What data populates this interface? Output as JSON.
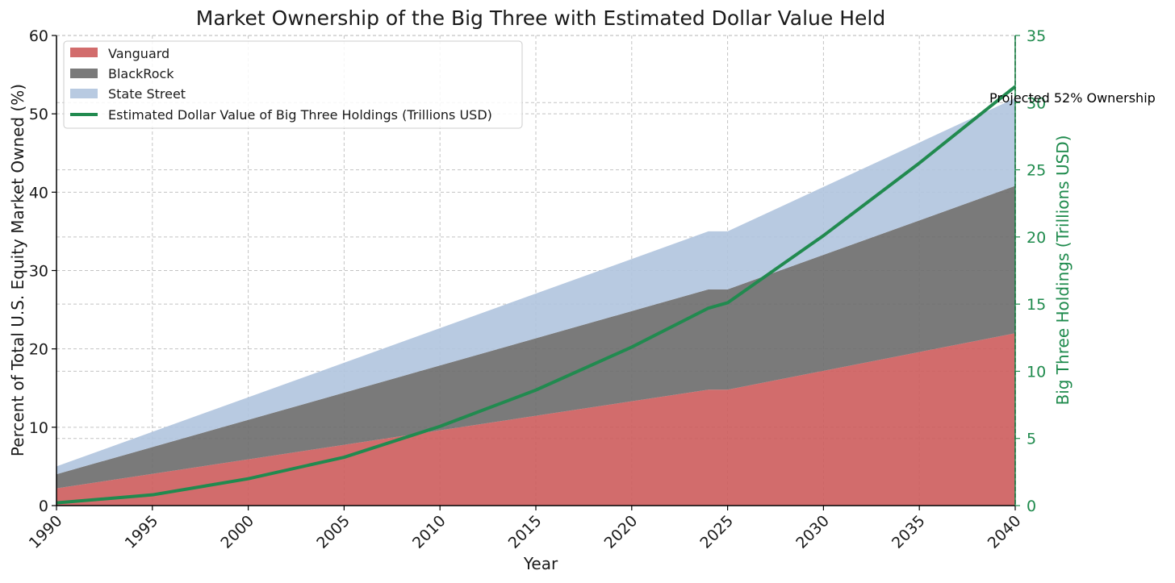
{
  "chart_data": {
    "type": "area",
    "title": "Market Ownership of the Big Three with Estimated Dollar Value Held",
    "xlabel": "Year",
    "ylabel": "Percent of Total U.S. Equity Market Owned (%)",
    "ylabel_right": "Big Three Holdings (Trillions USD)",
    "xlim": [
      1990,
      2040
    ],
    "ylim": [
      0,
      60
    ],
    "ylim_right": [
      0,
      35
    ],
    "x_ticks": [
      1990,
      1995,
      2000,
      2005,
      2010,
      2015,
      2020,
      2025,
      2030,
      2035,
      2040
    ],
    "y_ticks": [
      0,
      10,
      20,
      30,
      40,
      50,
      60
    ],
    "y_ticks_right": [
      0,
      5,
      10,
      15,
      20,
      25,
      30,
      35
    ],
    "stack_x": [
      1990,
      2024,
      2025,
      2040
    ],
    "series": [
      {
        "name": "Vanguard",
        "kind": "area",
        "color": "#cd5c5c",
        "values": [
          2.2,
          14.8,
          14.8,
          22.0
        ]
      },
      {
        "name": "BlackRock",
        "kind": "area",
        "color": "#6b6b6b",
        "values": [
          1.8,
          12.8,
          12.8,
          18.8
        ]
      },
      {
        "name": "State Street",
        "kind": "area",
        "color": "#b0c4de",
        "values": [
          1.0,
          7.4,
          7.4,
          11.2
        ]
      }
    ],
    "line_series": {
      "name": "Estimated Dollar Value of Big Three Holdings (Trillions USD)",
      "axis": "right",
      "color": "#218a4f",
      "x": [
        1990,
        1995,
        2000,
        2005,
        2010,
        2015,
        2020,
        2024,
        2025,
        2030,
        2035,
        2040
      ],
      "values": [
        0.2,
        0.8,
        2.0,
        3.6,
        5.9,
        8.6,
        11.8,
        14.7,
        15.1,
        20.1,
        25.5,
        31.2
      ]
    },
    "vline": {
      "x": 2040,
      "style": "dashed",
      "color": "#000000"
    },
    "annotation": "Projected 52% Ownership",
    "grid": true,
    "legend_position": "top-left"
  }
}
